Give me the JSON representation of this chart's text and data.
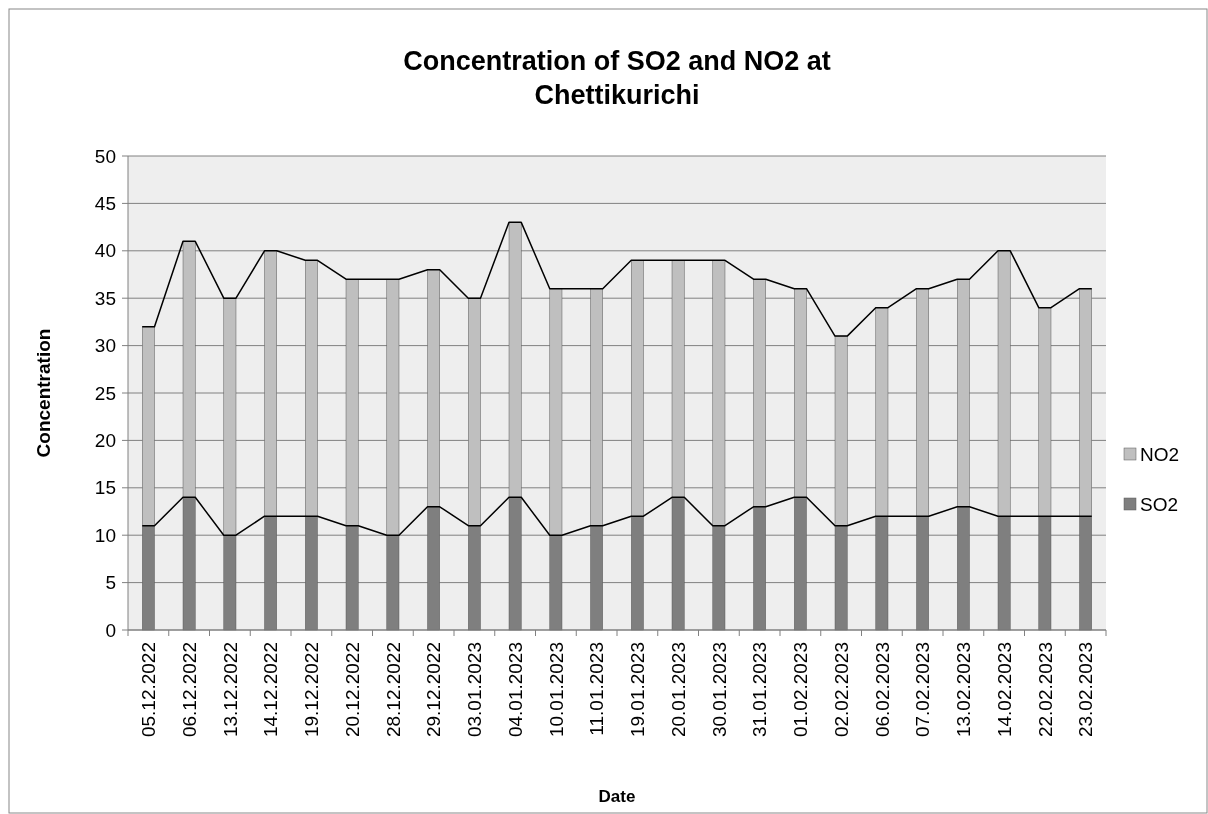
{
  "chart_data": {
    "type": "bar",
    "stacked": true,
    "title": "Concentration of SO2 and NO2 at Chettikurichi",
    "xlabel": "Date",
    "ylabel": "Concentration",
    "categories": [
      "05.12.2022",
      "06.12.2022",
      "13.12.2022",
      "14.12.2022",
      "19.12.2022",
      "20.12.2022",
      "28.12.2022",
      "29.12.2022",
      "03.01.2023",
      "04.01.2023",
      "10.01.2023",
      "11.01.2023",
      "19.01.2023",
      "20.01.2023",
      "30.01.2023",
      "31.01.2023",
      "01.02.2023",
      "02.02.2023",
      "06.02.2023",
      "07.02.2023",
      "13.02.2023",
      "14.02.2023",
      "22.02.2023",
      "23.02.2023"
    ],
    "series": [
      {
        "name": "SO2",
        "color": "#7f7f7f",
        "values": [
          11,
          14,
          10,
          12,
          12,
          11,
          10,
          13,
          11,
          14,
          10,
          11,
          12,
          14,
          11,
          13,
          14,
          11,
          12,
          12,
          13,
          12,
          12,
          12
        ]
      },
      {
        "name": "NO2",
        "color": "#bfbfbf",
        "values": [
          21,
          27,
          25,
          28,
          27,
          26,
          27,
          25,
          24,
          29,
          26,
          25,
          27,
          25,
          28,
          24,
          22,
          20,
          22,
          24,
          24,
          28,
          22,
          24
        ]
      }
    ],
    "ylim": [
      0,
      50
    ],
    "yticks": [
      0,
      5,
      10,
      15,
      20,
      25,
      30,
      35,
      40,
      45,
      50
    ],
    "grid": "y",
    "legend": "right"
  }
}
